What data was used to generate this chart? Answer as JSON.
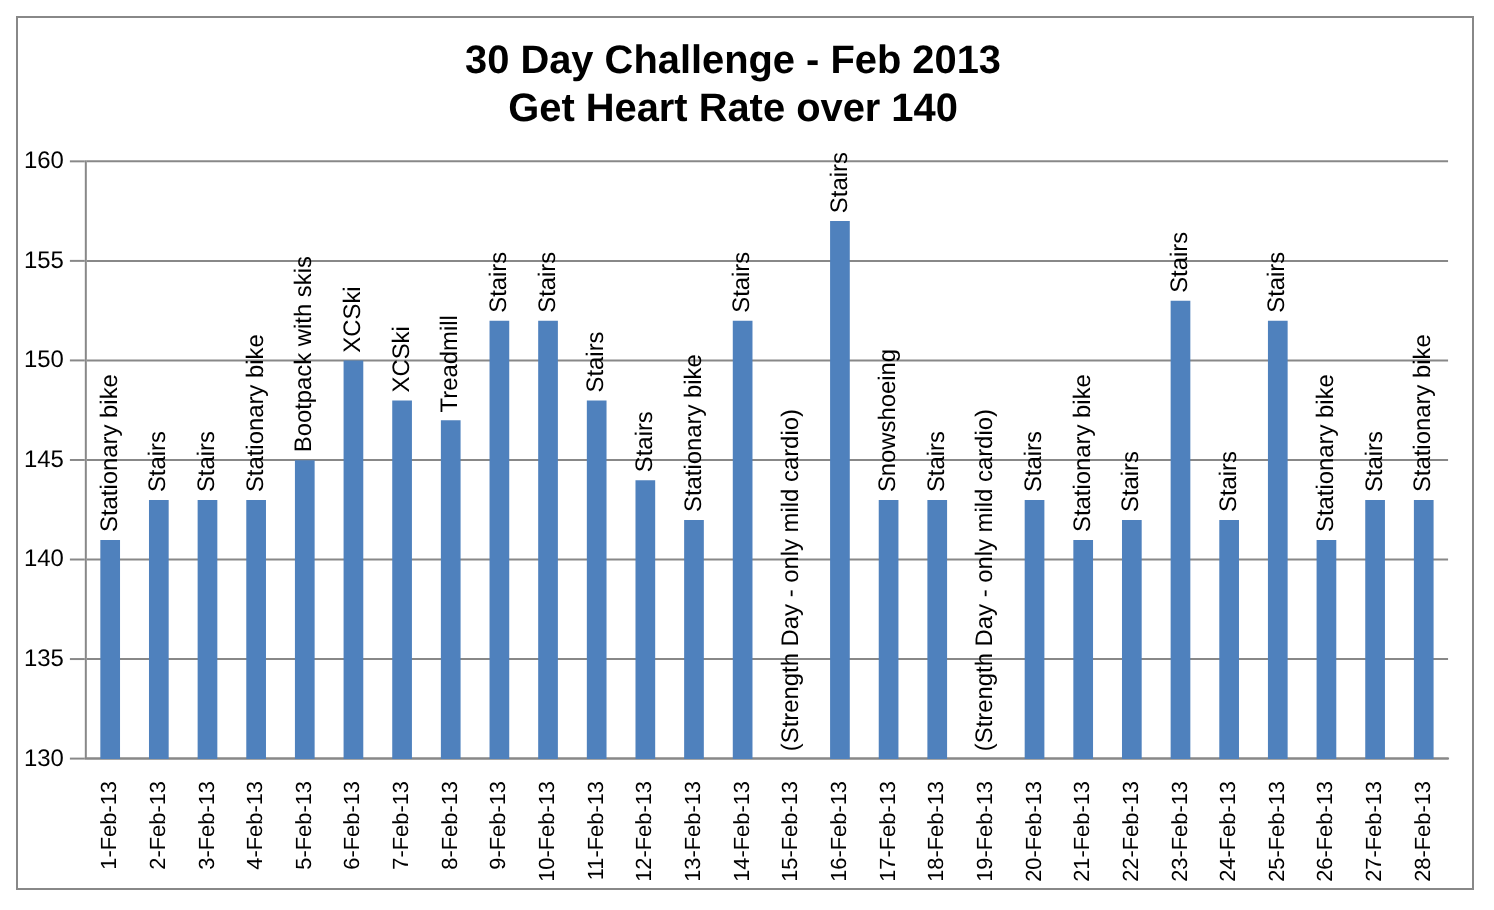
{
  "chart_data": {
    "type": "bar",
    "title": [
      "30 Day Challenge - Feb 2013",
      "Get Heart Rate over 140"
    ],
    "categories": [
      "1-Feb-13",
      "2-Feb-13",
      "3-Feb-13",
      "4-Feb-13",
      "5-Feb-13",
      "6-Feb-13",
      "7-Feb-13",
      "8-Feb-13",
      "9-Feb-13",
      "10-Feb-13",
      "11-Feb-13",
      "12-Feb-13",
      "13-Feb-13",
      "14-Feb-13",
      "15-Feb-13",
      "16-Feb-13",
      "17-Feb-13",
      "18-Feb-13",
      "19-Feb-13",
      "20-Feb-13",
      "21-Feb-13",
      "22-Feb-13",
      "23-Feb-13",
      "24-Feb-13",
      "25-Feb-13",
      "26-Feb-13",
      "27-Feb-13",
      "28-Feb-13"
    ],
    "values": [
      141,
      143,
      143,
      143,
      145,
      150,
      148,
      147,
      152,
      152,
      148,
      144,
      142,
      152,
      null,
      157,
      143,
      143,
      null,
      143,
      141,
      142,
      153,
      142,
      152,
      141,
      143,
      143
    ],
    "value_labels": [
      "Stationary bike",
      "Stairs",
      "Stairs",
      "Stationary bike",
      "Bootpack with skis",
      "XCSki",
      "XCSki",
      "Treadmill",
      "Stairs",
      "Stairs",
      "Stairs",
      "Stairs",
      "Stationary bike",
      "Stairs",
      "(Strength Day - only mild cardio)",
      "Stairs",
      "Snowshoeing",
      "Stairs",
      "(Strength Day - only mild cardio)",
      "Stairs",
      "Stationary bike",
      "Stairs",
      "Stairs",
      "Stairs",
      "Stairs",
      "Stationary bike",
      "Stairs",
      "Stationary bike"
    ],
    "color": "#4f81bd",
    "ylim": [
      130,
      160
    ],
    "yticks": [
      130,
      135,
      140,
      145,
      150,
      155,
      160
    ],
    "grid": "y",
    "legend": false
  }
}
